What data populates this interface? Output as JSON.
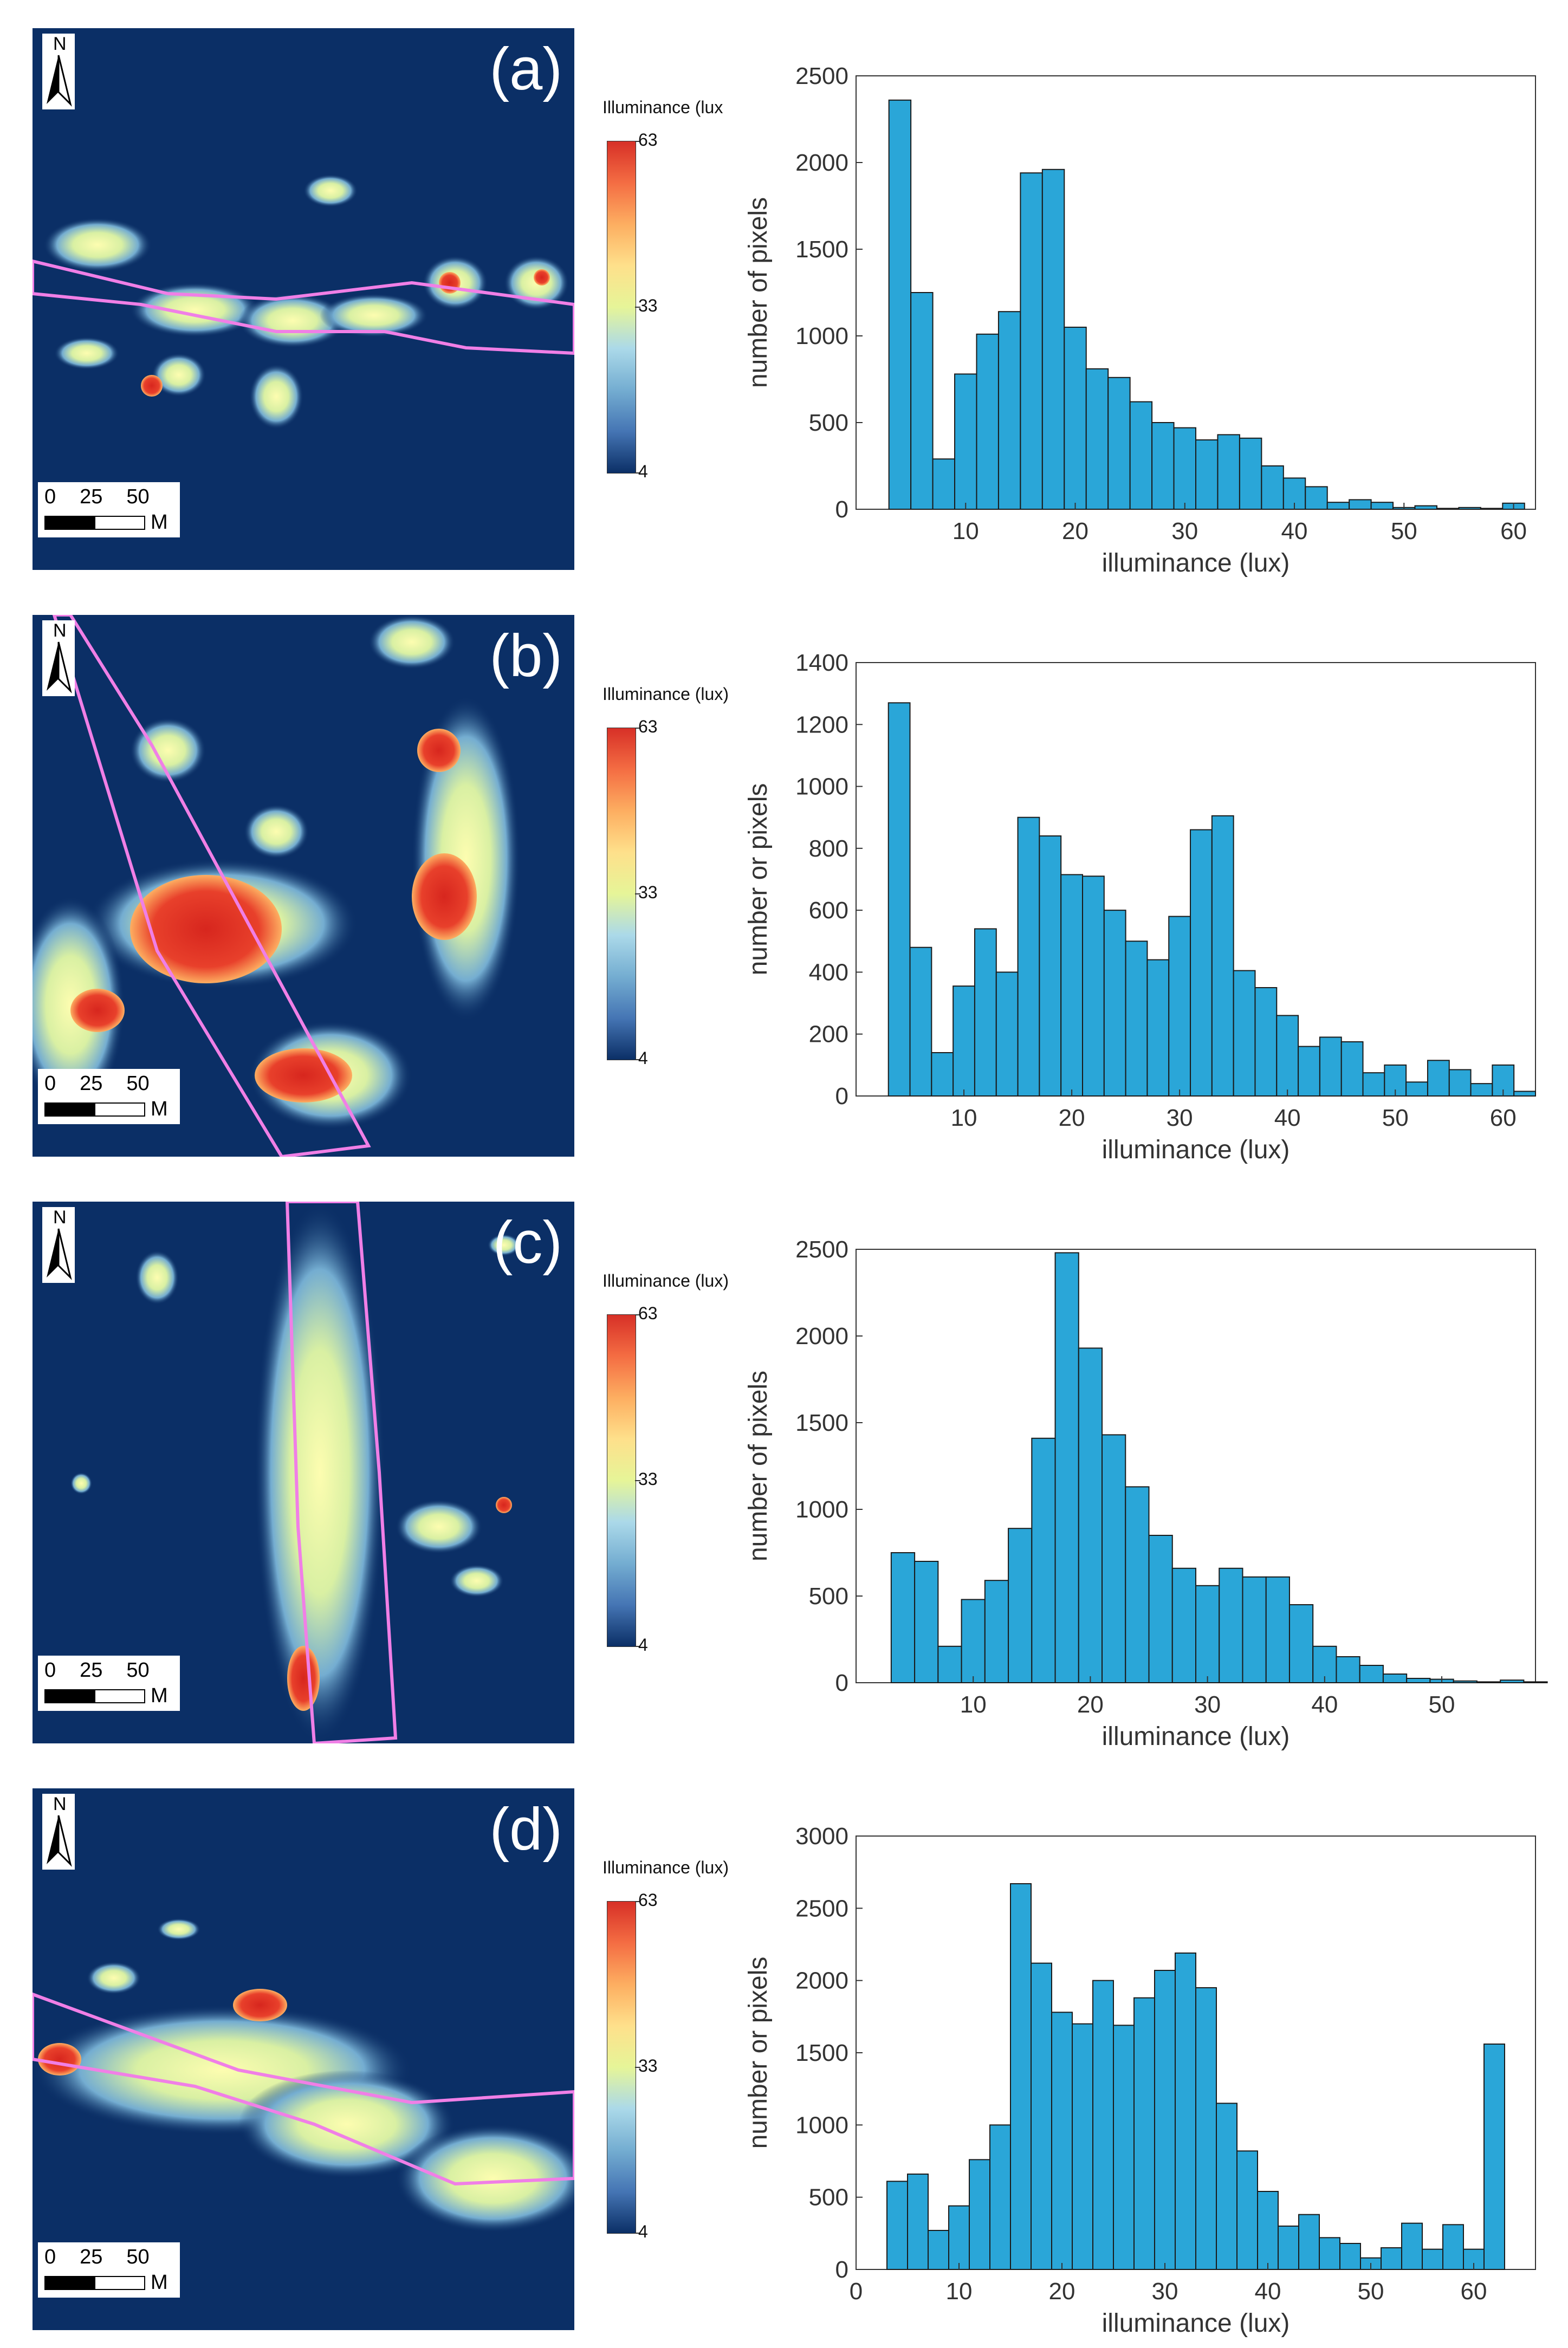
{
  "colors": {
    "map_background": "#0b2f66",
    "bar_fill": "#2aa6d8",
    "bar_stroke": "#1a1a1a",
    "road_outline": "#f07fe6",
    "colorbar": [
      "#d73027",
      "#f46d43",
      "#fdae61",
      "#fee08b",
      "#e6f598",
      "#abd9e9",
      "#74add1",
      "#4575b4",
      "#0b2f66"
    ]
  },
  "icons": {
    "north_arrow": "north-arrow-icon"
  },
  "panels": [
    {
      "label": "(a)",
      "north": "N",
      "scale": {
        "ticks": [
          "0",
          "25",
          "50"
        ],
        "unit": "M"
      },
      "legend": {
        "title": "Illuminance (lux",
        "max": "63",
        "mid": "33",
        "min": "4"
      }
    },
    {
      "label": "(b)",
      "north": "N",
      "scale": {
        "ticks": [
          "0",
          "25",
          "50"
        ],
        "unit": "M"
      },
      "legend": {
        "title": "Illuminance (lux)",
        "max": "63",
        "mid": "33",
        "min": "4"
      }
    },
    {
      "label": "(c)",
      "north": "N",
      "scale": {
        "ticks": [
          "0",
          "25",
          "50"
        ],
        "unit": "M"
      },
      "legend": {
        "title": "Illuminance (lux)",
        "max": "63",
        "mid": "33",
        "min": "4"
      }
    },
    {
      "label": "(d)",
      "north": "N",
      "scale": {
        "ticks": [
          "0",
          "25",
          "50"
        ],
        "unit": "M"
      },
      "legend": {
        "title": "Illuminance (lux)",
        "max": "63",
        "mid": "33",
        "min": "4"
      }
    }
  ],
  "chart_data": [
    {
      "type": "bar",
      "panel": "(a)",
      "xlabel": "illuminance (lux)",
      "ylabel": "number of pixels",
      "xlim": [
        0,
        62
      ],
      "ylim": [
        0,
        2500
      ],
      "xticks": [
        10,
        20,
        30,
        40,
        50,
        60
      ],
      "yticks": [
        0,
        500,
        1000,
        1500,
        2000,
        2500
      ],
      "bin_start": 3,
      "bin_width": 2,
      "values": [
        2360,
        1250,
        290,
        780,
        1010,
        1140,
        1940,
        1960,
        1050,
        810,
        760,
        620,
        500,
        470,
        400,
        430,
        410,
        250,
        180,
        130,
        40,
        55,
        40,
        10,
        20,
        5,
        10,
        5,
        35
      ]
    },
    {
      "type": "bar",
      "panel": "(b)",
      "xlabel": "illuminance (lux)",
      "ylabel": "number or pixels",
      "xlim": [
        0,
        63
      ],
      "ylim": [
        0,
        1400
      ],
      "xticks": [
        10,
        20,
        30,
        40,
        50,
        60
      ],
      "yticks": [
        0,
        200,
        400,
        600,
        800,
        1000,
        1200,
        1400
      ],
      "bin_start": 3,
      "bin_width": 2,
      "values": [
        1270,
        480,
        140,
        355,
        540,
        400,
        900,
        840,
        715,
        710,
        600,
        500,
        440,
        580,
        860,
        905,
        405,
        350,
        260,
        160,
        190,
        175,
        75,
        100,
        45,
        115,
        85,
        40,
        100,
        15
      ]
    },
    {
      "type": "bar",
      "panel": "(c)",
      "xlabel": "illuminance (lux)",
      "ylabel": "number of pixels",
      "xlim": [
        0,
        58
      ],
      "ylim": [
        0,
        2500
      ],
      "xticks": [
        10,
        20,
        30,
        40,
        50
      ],
      "yticks": [
        0,
        500,
        1000,
        1500,
        2000,
        2500
      ],
      "bin_start": 3,
      "bin_width": 2,
      "values": [
        750,
        700,
        210,
        480,
        590,
        890,
        1410,
        2480,
        1930,
        1430,
        1130,
        850,
        660,
        560,
        660,
        610,
        610,
        450,
        210,
        150,
        100,
        50,
        25,
        20,
        10,
        5,
        15,
        5
      ]
    },
    {
      "type": "bar",
      "panel": "(d)",
      "xlabel": "illuminance (lux)",
      "ylabel": "number or pixels",
      "xlim": [
        0,
        66
      ],
      "ylim": [
        0,
        3000
      ],
      "xticks": [
        0,
        10,
        20,
        30,
        40,
        50,
        60
      ],
      "yticks": [
        0,
        500,
        1000,
        1500,
        2000,
        2500,
        3000
      ],
      "bin_start": 3,
      "bin_width": 2,
      "values": [
        610,
        660,
        270,
        440,
        760,
        1000,
        2670,
        2120,
        1780,
        1700,
        2000,
        1690,
        1880,
        2070,
        2190,
        1950,
        1150,
        820,
        540,
        300,
        380,
        220,
        180,
        80,
        150,
        320,
        140,
        310,
        140,
        1560
      ]
    }
  ]
}
